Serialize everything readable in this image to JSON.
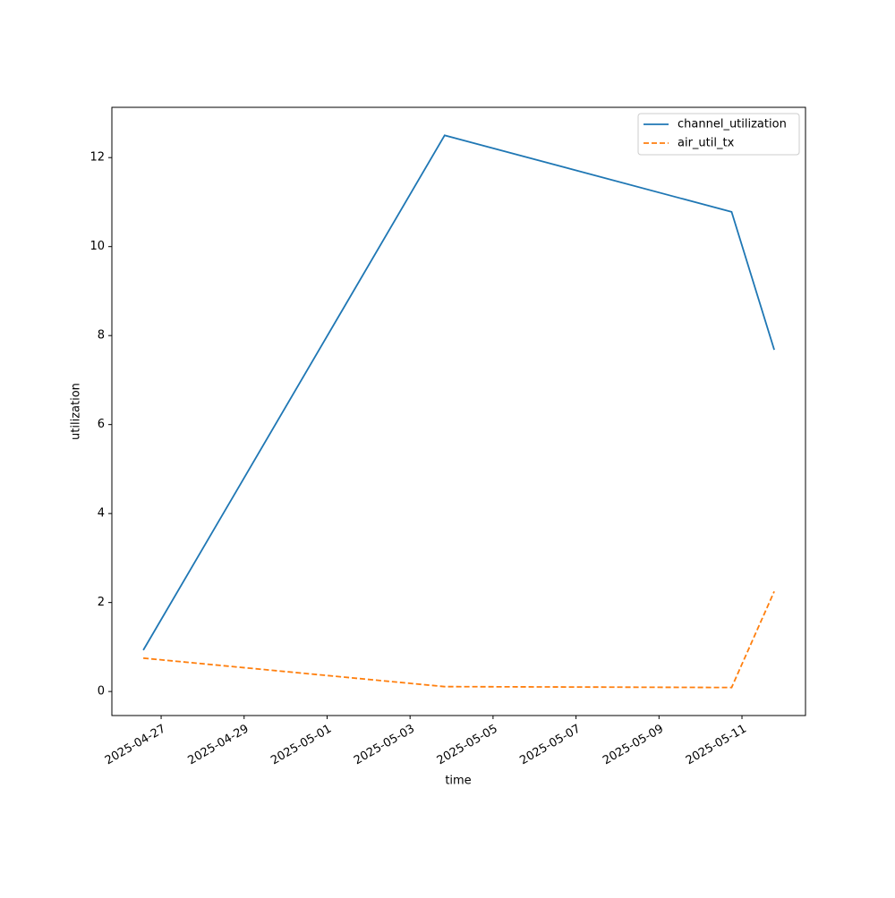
{
  "chart_data": {
    "type": "line",
    "xlabel": "time",
    "ylabel": "utilization",
    "x": [
      "2025-04-26T13:40",
      "2025-05-03T20:00",
      "2025-05-10T18:00",
      "2025-05-11T18:40"
    ],
    "series": [
      {
        "name": "channel_utilization",
        "color": "#1f77b4",
        "dash": "solid",
        "values": [
          0.93,
          12.5,
          10.78,
          7.68
        ]
      },
      {
        "name": "air_util_tx",
        "color": "#ff7f0e",
        "dash": "dashed",
        "values": [
          0.75,
          0.11,
          0.09,
          2.25
        ]
      }
    ],
    "xlim": [
      "2025-04-25T19:30",
      "2025-05-12T12:45"
    ],
    "xticks": [
      "2025-04-27",
      "2025-04-29",
      "2025-05-01",
      "2025-05-03",
      "2025-05-05",
      "2025-05-07",
      "2025-05-09",
      "2025-05-11"
    ],
    "ylim": [
      -0.54,
      13.13
    ],
    "yticks": [
      0,
      2,
      4,
      6,
      8,
      10,
      12
    ],
    "grid": false,
    "legend": "upper right"
  }
}
